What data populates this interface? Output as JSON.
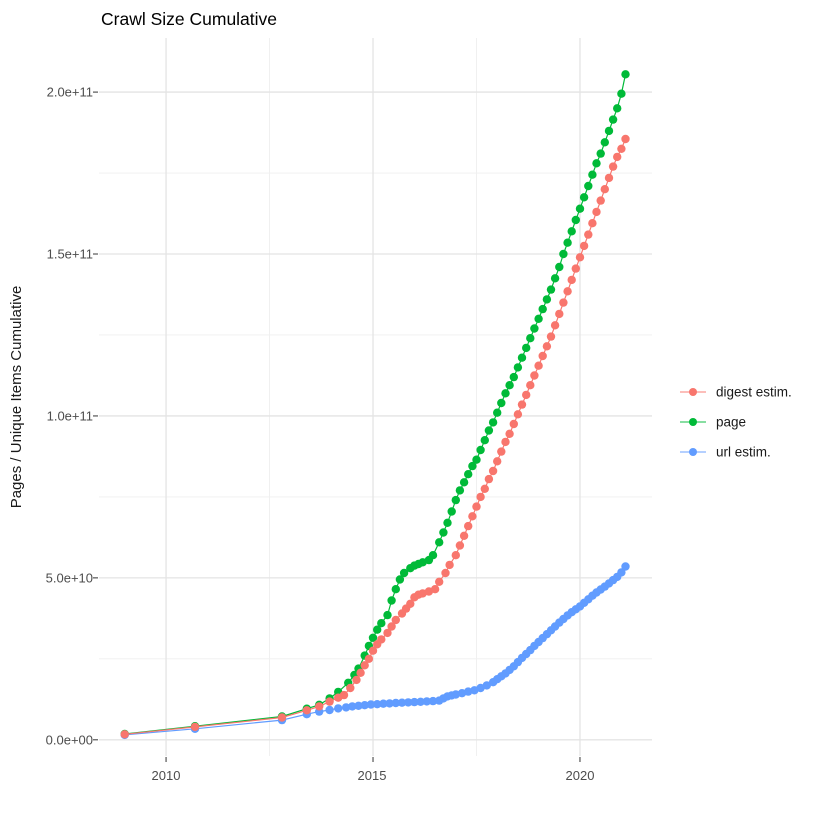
{
  "chart_data": {
    "type": "scatter",
    "title": "Crawl Size Cumulative",
    "xlabel": "",
    "ylabel": "Pages / Unique Items Cumulative",
    "grid": true,
    "legend_position": "right",
    "xlim": [
      2008.38,
      2021.74
    ],
    "ylim": [
      -5000000000.0,
      216700000000.0
    ],
    "x_ticks": [
      {
        "value": 2010,
        "label": "2010"
      },
      {
        "value": 2015,
        "label": "2015"
      },
      {
        "value": 2020,
        "label": "2020"
      }
    ],
    "x_minor": [
      2012.5,
      2017.5
    ],
    "y_ticks": [
      {
        "value": 0,
        "label": "0.0e+00"
      },
      {
        "value": 50000000000.0,
        "label": "5.0e+10"
      },
      {
        "value": 100000000000.0,
        "label": "1.0e+11"
      },
      {
        "value": 150000000000.0,
        "label": "1.5e+11"
      },
      {
        "value": 200000000000.0,
        "label": "2.0e+11"
      }
    ],
    "y_minor": [
      25000000000.0,
      75000000000.0,
      125000000000.0,
      175000000000.0
    ],
    "draw_order": [
      1,
      2,
      0
    ],
    "series": [
      {
        "name": "digest estim.",
        "color": "#F8766D",
        "points": [
          [
            2009.0,
            1700000000.0
          ],
          [
            2010.7,
            4000000000.0
          ],
          [
            2012.8,
            6900000000.0
          ],
          [
            2013.4,
            9100000000.0
          ],
          [
            2013.7,
            10300000000.0
          ],
          [
            2013.95,
            11800000000.0
          ],
          [
            2014.16,
            13000000000.0
          ],
          [
            2014.3,
            13800000000.0
          ],
          [
            2014.45,
            16000000000.0
          ],
          [
            2014.6,
            18500000000.0
          ],
          [
            2014.7,
            20700000000.0
          ],
          [
            2014.8,
            23000000000.0
          ],
          [
            2014.9,
            25000000000.0
          ],
          [
            2015.0,
            27500000000.0
          ],
          [
            2015.1,
            29500000000.0
          ],
          [
            2015.2,
            31000000000.0
          ],
          [
            2015.35,
            33000000000.0
          ],
          [
            2015.45,
            35000000000.0
          ],
          [
            2015.55,
            37000000000.0
          ],
          [
            2015.7,
            39000000000.0
          ],
          [
            2015.8,
            40500000000.0
          ],
          [
            2015.9,
            42000000000.0
          ],
          [
            2016.0,
            44000000000.0
          ],
          [
            2016.1,
            44800000000.0
          ],
          [
            2016.2,
            45200000000.0
          ],
          [
            2016.35,
            45800000000.0
          ],
          [
            2016.5,
            46500000000.0
          ],
          [
            2016.6,
            48800000000.0
          ],
          [
            2016.75,
            51500000000.0
          ],
          [
            2016.85,
            54000000000.0
          ],
          [
            2017.0,
            57000000000.0
          ],
          [
            2017.1,
            60000000000.0
          ],
          [
            2017.2,
            63000000000.0
          ],
          [
            2017.3,
            66000000000.0
          ],
          [
            2017.4,
            69000000000.0
          ],
          [
            2017.5,
            72000000000.0
          ],
          [
            2017.6,
            75000000000.0
          ],
          [
            2017.7,
            77500000000.0
          ],
          [
            2017.8,
            80500000000.0
          ],
          [
            2017.9,
            83000000000.0
          ],
          [
            2018.0,
            86000000000.0
          ],
          [
            2018.1,
            89000000000.0
          ],
          [
            2018.2,
            92000000000.0
          ],
          [
            2018.3,
            94500000000.0
          ],
          [
            2018.4,
            97500000000.0
          ],
          [
            2018.5,
            100500000000.0
          ],
          [
            2018.6,
            103500000000.0
          ],
          [
            2018.7,
            106500000000.0
          ],
          [
            2018.8,
            109500000000.0
          ],
          [
            2018.9,
            112500000000.0
          ],
          [
            2019.0,
            115500000000.0
          ],
          [
            2019.1,
            118500000000.0
          ],
          [
            2019.2,
            121500000000.0
          ],
          [
            2019.3,
            124500000000.0
          ],
          [
            2019.4,
            128000000000.0
          ],
          [
            2019.5,
            131500000000.0
          ],
          [
            2019.6,
            135000000000.0
          ],
          [
            2019.7,
            138500000000.0
          ],
          [
            2019.8,
            142000000000.0
          ],
          [
            2019.9,
            145500000000.0
          ],
          [
            2020.0,
            149000000000.0
          ],
          [
            2020.1,
            152500000000.0
          ],
          [
            2020.2,
            156000000000.0
          ],
          [
            2020.3,
            159500000000.0
          ],
          [
            2020.4,
            163000000000.0
          ],
          [
            2020.5,
            166500000000.0
          ],
          [
            2020.6,
            170000000000.0
          ],
          [
            2020.7,
            173500000000.0
          ],
          [
            2020.8,
            177000000000.0
          ],
          [
            2020.9,
            180000000000.0
          ],
          [
            2021.0,
            182500000000.0
          ],
          [
            2021.1,
            185500000000.0
          ]
        ]
      },
      {
        "name": "page",
        "color": "#00BA38",
        "points": [
          [
            2009.0,
            1800000000.0
          ],
          [
            2010.7,
            4200000000.0
          ],
          [
            2012.8,
            7200000000.0
          ],
          [
            2013.4,
            9600000000.0
          ],
          [
            2013.7,
            10800000000.0
          ],
          [
            2013.95,
            12800000000.0
          ],
          [
            2014.16,
            14800000000.0
          ],
          [
            2014.4,
            17600000000.0
          ],
          [
            2014.55,
            20000000000.0
          ],
          [
            2014.65,
            22000000000.0
          ],
          [
            2014.8,
            26000000000.0
          ],
          [
            2014.9,
            29000000000.0
          ],
          [
            2015.0,
            31500000000.0
          ],
          [
            2015.1,
            34000000000.0
          ],
          [
            2015.2,
            36000000000.0
          ],
          [
            2015.35,
            38500000000.0
          ],
          [
            2015.45,
            43000000000.0
          ],
          [
            2015.55,
            46500000000.0
          ],
          [
            2015.65,
            49500000000.0
          ],
          [
            2015.75,
            51500000000.0
          ],
          [
            2015.9,
            53000000000.0
          ],
          [
            2016.0,
            53800000000.0
          ],
          [
            2016.1,
            54300000000.0
          ],
          [
            2016.2,
            54800000000.0
          ],
          [
            2016.35,
            55500000000.0
          ],
          [
            2016.45,
            57000000000.0
          ],
          [
            2016.6,
            61000000000.0
          ],
          [
            2016.7,
            64000000000.0
          ],
          [
            2016.8,
            67000000000.0
          ],
          [
            2016.9,
            70500000000.0
          ],
          [
            2017.0,
            74000000000.0
          ],
          [
            2017.1,
            77000000000.0
          ],
          [
            2017.2,
            79500000000.0
          ],
          [
            2017.3,
            82000000000.0
          ],
          [
            2017.4,
            84500000000.0
          ],
          [
            2017.5,
            86500000000.0
          ],
          [
            2017.6,
            89500000000.0
          ],
          [
            2017.7,
            92500000000.0
          ],
          [
            2017.8,
            95500000000.0
          ],
          [
            2017.9,
            98000000000.0
          ],
          [
            2018.0,
            101000000000.0
          ],
          [
            2018.1,
            104000000000.0
          ],
          [
            2018.2,
            107000000000.0
          ],
          [
            2018.3,
            109500000000.0
          ],
          [
            2018.4,
            112000000000.0
          ],
          [
            2018.5,
            115000000000.0
          ],
          [
            2018.6,
            118000000000.0
          ],
          [
            2018.7,
            121000000000.0
          ],
          [
            2018.8,
            124000000000.0
          ],
          [
            2018.9,
            127000000000.0
          ],
          [
            2019.0,
            130000000000.0
          ],
          [
            2019.1,
            133000000000.0
          ],
          [
            2019.2,
            136000000000.0
          ],
          [
            2019.3,
            139000000000.0
          ],
          [
            2019.4,
            142500000000.0
          ],
          [
            2019.5,
            146000000000.0
          ],
          [
            2019.6,
            150000000000.0
          ],
          [
            2019.7,
            153500000000.0
          ],
          [
            2019.8,
            157000000000.0
          ],
          [
            2019.9,
            160500000000.0
          ],
          [
            2020.0,
            164000000000.0
          ],
          [
            2020.1,
            167500000000.0
          ],
          [
            2020.2,
            171000000000.0
          ],
          [
            2020.3,
            174500000000.0
          ],
          [
            2020.4,
            178000000000.0
          ],
          [
            2020.5,
            181000000000.0
          ],
          [
            2020.6,
            184500000000.0
          ],
          [
            2020.7,
            188000000000.0
          ],
          [
            2020.8,
            191500000000.0
          ],
          [
            2020.9,
            195000000000.0
          ],
          [
            2021.0,
            199500000000.0
          ],
          [
            2021.1,
            205500000000.0
          ]
        ]
      },
      {
        "name": "url estim.",
        "color": "#619CFF",
        "points": [
          [
            2009.0,
            1500000000.0
          ],
          [
            2010.7,
            3400000000.0
          ],
          [
            2012.8,
            6100000000.0
          ],
          [
            2013.4,
            7900000000.0
          ],
          [
            2013.7,
            8700000000.0
          ],
          [
            2013.95,
            9200000000.0
          ],
          [
            2014.16,
            9700000000.0
          ],
          [
            2014.35,
            10000000000.0
          ],
          [
            2014.5,
            10300000000.0
          ],
          [
            2014.65,
            10500000000.0
          ],
          [
            2014.8,
            10700000000.0
          ],
          [
            2014.95,
            10900000000.0
          ],
          [
            2015.1,
            11000000000.0
          ],
          [
            2015.25,
            11150000000.0
          ],
          [
            2015.4,
            11250000000.0
          ],
          [
            2015.55,
            11350000000.0
          ],
          [
            2015.7,
            11450000000.0
          ],
          [
            2015.85,
            11550000000.0
          ],
          [
            2016.0,
            11650000000.0
          ],
          [
            2016.15,
            11750000000.0
          ],
          [
            2016.3,
            11850000000.0
          ],
          [
            2016.45,
            11950000000.0
          ],
          [
            2016.6,
            12100000000.0
          ],
          [
            2016.7,
            12800000000.0
          ],
          [
            2016.8,
            13400000000.0
          ],
          [
            2016.9,
            13700000000.0
          ],
          [
            2017.0,
            14000000000.0
          ],
          [
            2017.15,
            14400000000.0
          ],
          [
            2017.3,
            14900000000.0
          ],
          [
            2017.45,
            15300000000.0
          ],
          [
            2017.6,
            16000000000.0
          ],
          [
            2017.75,
            16800000000.0
          ],
          [
            2017.9,
            17800000000.0
          ],
          [
            2018.0,
            18700000000.0
          ],
          [
            2018.1,
            19600000000.0
          ],
          [
            2018.2,
            20500000000.0
          ],
          [
            2018.3,
            21600000000.0
          ],
          [
            2018.4,
            22700000000.0
          ],
          [
            2018.5,
            24000000000.0
          ],
          [
            2018.6,
            25300000000.0
          ],
          [
            2018.7,
            26500000000.0
          ],
          [
            2018.8,
            27700000000.0
          ],
          [
            2018.9,
            29000000000.0
          ],
          [
            2019.0,
            30200000000.0
          ],
          [
            2019.1,
            31400000000.0
          ],
          [
            2019.2,
            32600000000.0
          ],
          [
            2019.3,
            33800000000.0
          ],
          [
            2019.4,
            35000000000.0
          ],
          [
            2019.5,
            36200000000.0
          ],
          [
            2019.6,
            37300000000.0
          ],
          [
            2019.7,
            38400000000.0
          ],
          [
            2019.8,
            39400000000.0
          ],
          [
            2019.9,
            40300000000.0
          ],
          [
            2020.0,
            41200000000.0
          ],
          [
            2020.1,
            42300000000.0
          ],
          [
            2020.2,
            43400000000.0
          ],
          [
            2020.3,
            44500000000.0
          ],
          [
            2020.4,
            45500000000.0
          ],
          [
            2020.5,
            46400000000.0
          ],
          [
            2020.6,
            47300000000.0
          ],
          [
            2020.7,
            48300000000.0
          ],
          [
            2020.8,
            49300000000.0
          ],
          [
            2020.9,
            50300000000.0
          ],
          [
            2021.0,
            51700000000.0
          ],
          [
            2021.1,
            53500000000.0
          ]
        ]
      }
    ],
    "style": {
      "grid_major_color": "#e4e4e4",
      "grid_minor_color": "#efefef",
      "tick_mark_color": "#333333",
      "point_radius": 4.2
    }
  }
}
